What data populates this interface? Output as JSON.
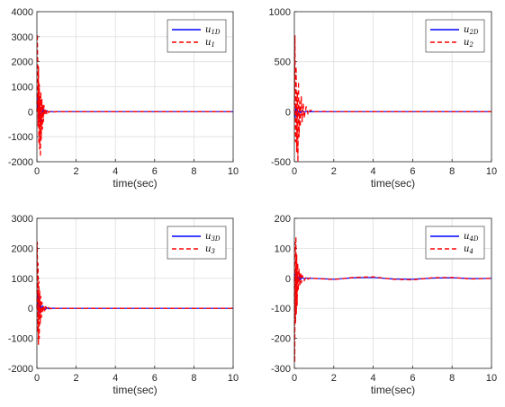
{
  "chart_data": [
    {
      "type": "line",
      "xlabel": "time(sec)",
      "xlim": [
        0,
        10
      ],
      "ylim": [
        -2000,
        4000
      ],
      "xticks": [
        "0",
        "2",
        "4",
        "6",
        "8",
        "10"
      ],
      "yticks": [
        "4000",
        "3000",
        "2000",
        "1000",
        "0",
        "-1000",
        "-2000"
      ],
      "grid": true,
      "legend_position": "top-right",
      "series": [
        {
          "name": "u_1D",
          "sym": "u",
          "sub": "1D",
          "color": "#0000ff",
          "dash": "solid",
          "x": [
            0,
            0.03,
            0.06,
            0.1,
            0.15,
            0.2,
            0.25,
            0.3,
            0.35,
            0.4,
            0.5,
            0.6,
            0.7,
            0.8,
            1,
            2,
            4,
            6,
            8,
            10
          ],
          "y": [
            0,
            250,
            700,
            -400,
            150,
            -500,
            250,
            -200,
            100,
            -60,
            40,
            -20,
            10,
            -5,
            0,
            0,
            0,
            0,
            0,
            0
          ]
        },
        {
          "name": "u_1",
          "sym": "u",
          "sub": "1",
          "color": "#ff0000",
          "dash": "dashed",
          "x": [
            0,
            0.02,
            0.04,
            0.06,
            0.08,
            0.1,
            0.12,
            0.14,
            0.16,
            0.18,
            0.2,
            0.22,
            0.25,
            0.28,
            0.3,
            0.33,
            0.36,
            0.4,
            0.45,
            0.5,
            0.55,
            0.6,
            0.7,
            0.8,
            1,
            2,
            4,
            6,
            8,
            10
          ],
          "y": [
            0,
            3100,
            2000,
            -600,
            1800,
            -1300,
            1100,
            -1500,
            600,
            -1800,
            800,
            -1100,
            500,
            -700,
            300,
            -400,
            250,
            -150,
            120,
            -80,
            50,
            -30,
            20,
            -10,
            0,
            0,
            0,
            0,
            0,
            0
          ]
        }
      ]
    },
    {
      "type": "line",
      "xlabel": "time(sec)",
      "xlim": [
        0,
        10
      ],
      "ylim": [
        -500,
        1000
      ],
      "xticks": [
        "0",
        "2",
        "4",
        "6",
        "8",
        "10"
      ],
      "yticks": [
        "1000",
        "500",
        "0",
        "-500"
      ],
      "grid": true,
      "legend_position": "top-right",
      "series": [
        {
          "name": "u_2D",
          "sym": "u",
          "sub": "2D",
          "color": "#0000ff",
          "dash": "solid",
          "x": [
            0,
            0.04,
            0.08,
            0.12,
            0.16,
            0.2,
            0.25,
            0.3,
            0.4,
            0.5,
            0.6,
            0.8,
            1,
            2,
            4,
            6,
            8,
            10
          ],
          "y": [
            0,
            -60,
            40,
            -50,
            20,
            -30,
            15,
            -10,
            8,
            -5,
            3,
            -1,
            0,
            0,
            0,
            0,
            0,
            0
          ]
        },
        {
          "name": "u_2",
          "sym": "u",
          "sub": "2",
          "color": "#ff0000",
          "dash": "dashed",
          "x": [
            0,
            0.03,
            0.06,
            0.09,
            0.12,
            0.15,
            0.18,
            0.21,
            0.24,
            0.27,
            0.3,
            0.35,
            0.4,
            0.45,
            0.5,
            0.6,
            0.7,
            0.8,
            1,
            1.5,
            2,
            4,
            6,
            8,
            10
          ],
          "y": [
            0,
            760,
            -300,
            450,
            -400,
            200,
            -500,
            300,
            -250,
            100,
            -150,
            150,
            -100,
            80,
            -60,
            50,
            -30,
            15,
            0,
            3,
            0,
            0,
            0,
            0,
            0
          ]
        }
      ]
    },
    {
      "type": "line",
      "xlabel": "time(sec)",
      "xlim": [
        0,
        10
      ],
      "ylim": [
        -2000,
        3000
      ],
      "xticks": [
        "0",
        "2",
        "4",
        "6",
        "8",
        "10"
      ],
      "yticks": [
        "3000",
        "2000",
        "1000",
        "0",
        "-1000",
        "-2000"
      ],
      "grid": true,
      "legend_position": "top-right",
      "series": [
        {
          "name": "u_3D",
          "sym": "u",
          "sub": "3D",
          "color": "#0000ff",
          "dash": "solid",
          "x": [
            0,
            0.04,
            0.08,
            0.12,
            0.16,
            0.2,
            0.25,
            0.3,
            0.4,
            0.5,
            0.6,
            0.8,
            1,
            2,
            4,
            6,
            8,
            10
          ],
          "y": [
            0,
            500,
            -300,
            400,
            -200,
            150,
            -100,
            80,
            -50,
            30,
            -15,
            5,
            0,
            0,
            0,
            0,
            0,
            0
          ]
        },
        {
          "name": "u_3",
          "sym": "u",
          "sub": "3",
          "color": "#ff0000",
          "dash": "dashed",
          "x": [
            0,
            0.02,
            0.04,
            0.06,
            0.08,
            0.1,
            0.12,
            0.14,
            0.17,
            0.2,
            0.23,
            0.26,
            0.3,
            0.35,
            0.4,
            0.45,
            0.5,
            0.6,
            0.7,
            0.8,
            1,
            2,
            4,
            6,
            8,
            10
          ],
          "y": [
            0,
            2200,
            -800,
            1500,
            -1200,
            900,
            -1000,
            600,
            -500,
            400,
            -300,
            200,
            -150,
            100,
            -80,
            60,
            -40,
            30,
            -15,
            5,
            0,
            0,
            0,
            0,
            0,
            0
          ]
        }
      ]
    },
    {
      "type": "line",
      "xlabel": "time(sec)",
      "xlim": [
        0,
        10
      ],
      "ylim": [
        -300,
        200
      ],
      "xticks": [
        "0",
        "2",
        "4",
        "6",
        "8",
        "10"
      ],
      "yticks": [
        "200",
        "100",
        "0",
        "-100",
        "-200",
        "-300"
      ],
      "grid": true,
      "legend_position": "top-right",
      "series": [
        {
          "name": "u_4D",
          "sym": "u",
          "sub": "4D",
          "color": "#0000ff",
          "dash": "solid",
          "x": [
            0,
            0.05,
            0.1,
            0.15,
            0.2,
            0.25,
            0.3,
            0.4,
            0.5,
            0.6,
            0.8,
            1,
            2,
            3,
            4,
            5,
            6,
            7,
            8,
            9,
            10
          ],
          "y": [
            0,
            25,
            -30,
            15,
            -10,
            8,
            -5,
            4,
            -2,
            1,
            0,
            0,
            -3,
            2,
            3,
            -2,
            -3,
            1,
            2,
            -1,
            0
          ]
        },
        {
          "name": "u_4",
          "sym": "u",
          "sub": "4",
          "color": "#ff0000",
          "dash": "dashed",
          "x": [
            0,
            0.02,
            0.04,
            0.06,
            0.08,
            0.1,
            0.12,
            0.14,
            0.17,
            0.2,
            0.24,
            0.28,
            0.32,
            0.36,
            0.4,
            0.5,
            0.6,
            0.7,
            0.8,
            1,
            2,
            3,
            4,
            5,
            6,
            7,
            8,
            9,
            10
          ],
          "y": [
            0,
            -280,
            120,
            -150,
            140,
            -120,
            80,
            -90,
            50,
            -40,
            30,
            -25,
            20,
            -15,
            10,
            -8,
            6,
            -3,
            2,
            0,
            -4,
            3,
            5,
            -3,
            -5,
            2,
            3,
            -2,
            0
          ]
        }
      ]
    }
  ]
}
